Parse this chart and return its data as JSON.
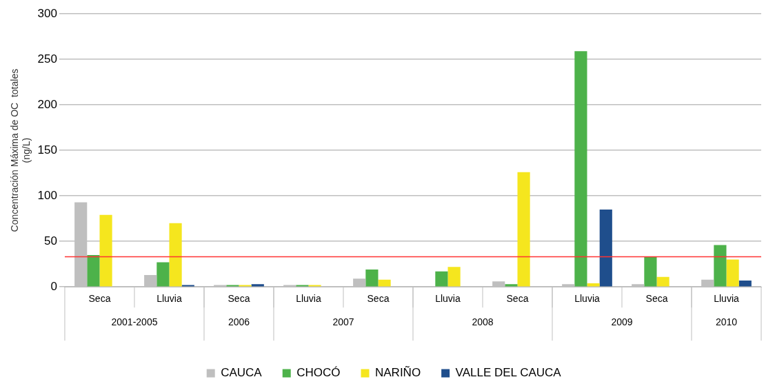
{
  "chart_data": {
    "type": "bar",
    "ylabel": "Concentración Máxima de OC  totales\n(ng/L)",
    "categories": [
      "Seca",
      "Lluvia",
      "Seca",
      "Lluvia",
      "Seca",
      "Lluvia",
      "Seca",
      "Lluvia",
      "Seca",
      "Lluvia"
    ],
    "series": [
      {
        "name": "CAUCA",
        "color": "#bfbfbf",
        "values": [
          93,
          13,
          2,
          2,
          9,
          null,
          6,
          3,
          3,
          8
        ]
      },
      {
        "name": "CHOCÓ",
        "color": "#4db24a",
        "values": [
          35,
          27,
          2,
          2,
          19,
          17,
          3,
          259,
          33,
          46
        ]
      },
      {
        "name": "NARIÑO",
        "color": "#f5e61e",
        "values": [
          79,
          70,
          2,
          2,
          8,
          22,
          126,
          4,
          11,
          30
        ]
      },
      {
        "name": "VALLE DEL CAUCA",
        "color": "#1f4e8c",
        "values": [
          null,
          2,
          3,
          null,
          null,
          null,
          null,
          85,
          null,
          7
        ]
      }
    ],
    "ylim": [
      0,
      300
    ],
    "yticks": [
      0,
      50,
      100,
      150,
      200,
      250,
      300
    ],
    "grid": "y",
    "legend": "bottom",
    "ref_lines": [
      {
        "axis": "y",
        "value": 33,
        "color": "#ff3333"
      }
    ],
    "annotations": [
      "2001-2005",
      "2006",
      "2007",
      "2008",
      "2009",
      "2010"
    ]
  }
}
